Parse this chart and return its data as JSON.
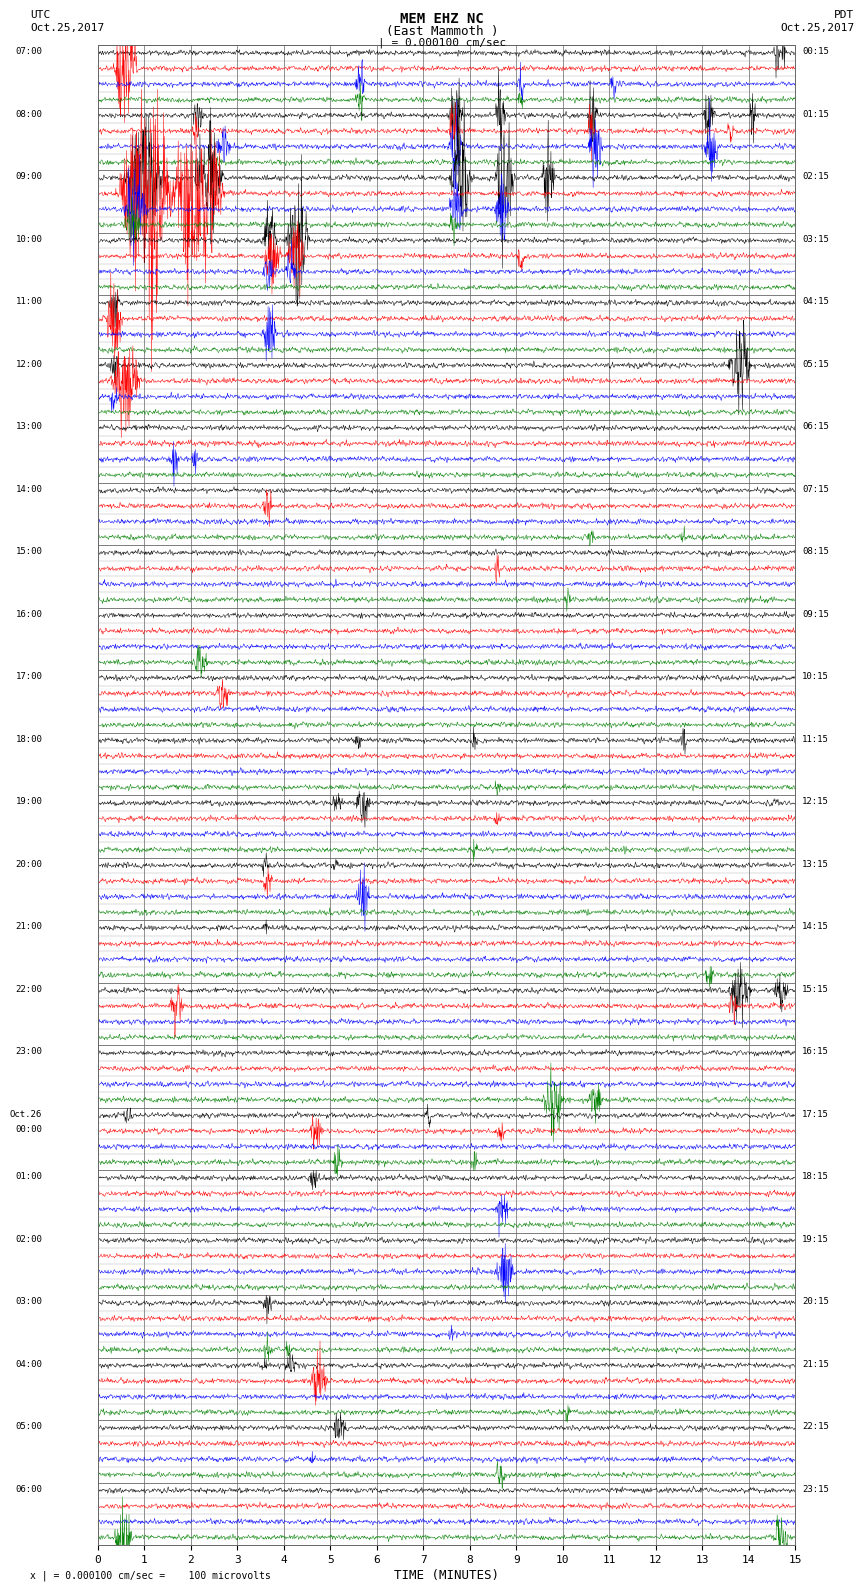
{
  "title_line1": "MEM EHZ NC",
  "title_line2": "(East Mammoth )",
  "scale_label": "| = 0.000100 cm/sec",
  "left_label_top": "UTC",
  "left_label_date": "Oct.25,2017",
  "right_label_top": "PDT",
  "right_label_date": "Oct.25,2017",
  "xlabel": "TIME (MINUTES)",
  "footnote": "x | = 0.000100 cm/sec =    100 microvolts",
  "utc_times": [
    "07:00",
    "08:00",
    "09:00",
    "10:00",
    "11:00",
    "12:00",
    "13:00",
    "14:00",
    "15:00",
    "16:00",
    "17:00",
    "18:00",
    "19:00",
    "20:00",
    "21:00",
    "22:00",
    "23:00",
    "Oct.26\n00:00",
    "01:00",
    "02:00",
    "03:00",
    "04:00",
    "05:00",
    "06:00",
    ""
  ],
  "pdt_times": [
    "00:15",
    "01:15",
    "02:15",
    "03:15",
    "04:15",
    "05:15",
    "06:15",
    "07:15",
    "08:15",
    "09:15",
    "10:15",
    "11:15",
    "12:15",
    "13:15",
    "14:15",
    "15:15",
    "16:15",
    "17:15",
    "18:15",
    "19:15",
    "20:15",
    "21:15",
    "22:15",
    "23:15",
    ""
  ],
  "num_rows": 24,
  "traces_per_row": 4,
  "trace_colors": [
    "black",
    "red",
    "blue",
    "green"
  ],
  "bg_color": "#ffffff",
  "grid_color": "#888888",
  "xmin": 0,
  "xmax": 15,
  "xticks": [
    0,
    1,
    2,
    3,
    4,
    5,
    6,
    7,
    8,
    9,
    10,
    11,
    12,
    13,
    14,
    15
  ]
}
